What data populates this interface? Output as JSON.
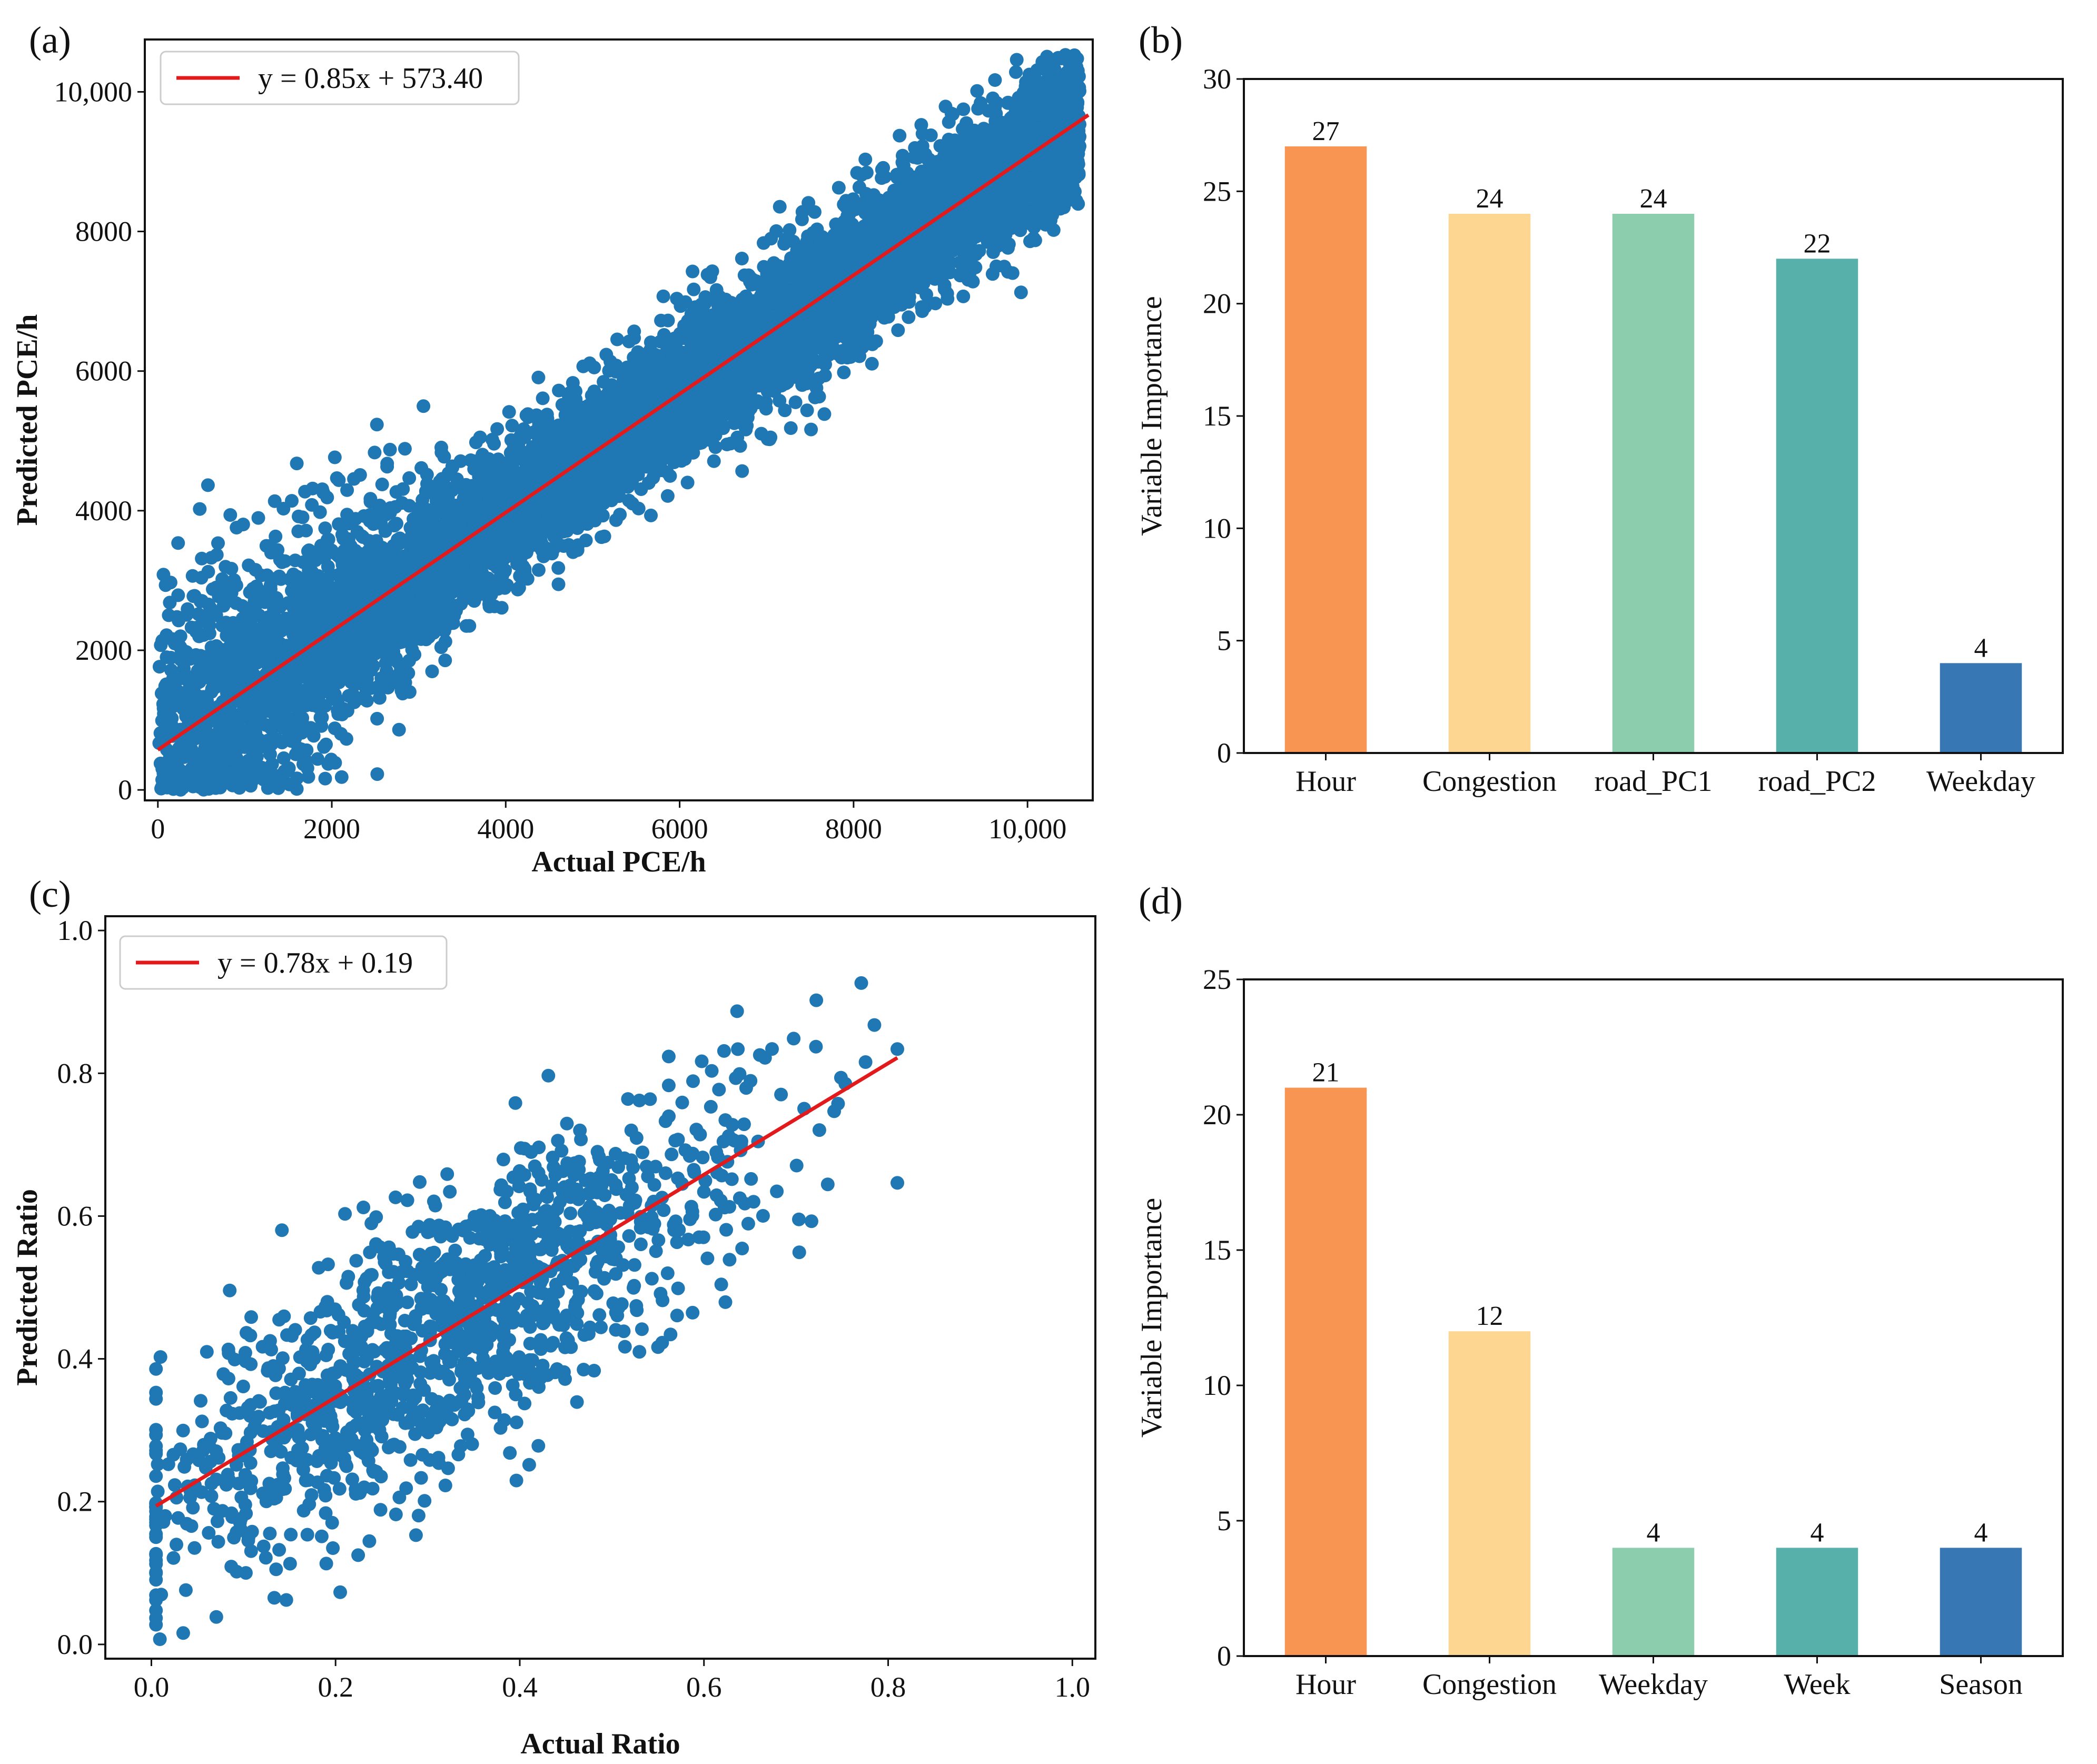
{
  "chart_data": [
    {
      "id": "a",
      "panel_label": "(a)",
      "type": "scatter",
      "title": "",
      "xlabel": "Actual PCE/h",
      "ylabel": "Predicted PCE/h",
      "xlim": [
        -150,
        10750
      ],
      "ylim": [
        -150,
        10750
      ],
      "xticks": [
        0,
        2000,
        4000,
        6000,
        8000,
        10000
      ],
      "xtick_labels": [
        "0",
        "2000",
        "4000",
        "6000",
        "8000",
        "10,000"
      ],
      "yticks": [
        0,
        2000,
        4000,
        6000,
        8000,
        10000
      ],
      "ytick_labels": [
        "0",
        "2000",
        "4000",
        "6000",
        "8000",
        "10,000"
      ],
      "point_color": "#1f77b4",
      "approx_point_count": 30000,
      "regression": {
        "slope": 0.85,
        "intercept": 573.4,
        "x_range": [
          0,
          10700
        ],
        "color": "#e31a1c"
      },
      "legend": {
        "label": "y = 0.85x + 573.40",
        "position": "top-left"
      }
    },
    {
      "id": "b",
      "panel_label": "(b)",
      "type": "bar",
      "title": "",
      "xlabel": "",
      "ylabel": "Variable Importance",
      "categories": [
        "Hour",
        "Congestion",
        "road_PC1",
        "road_PC2",
        "Weekday"
      ],
      "values": [
        27,
        24,
        24,
        22,
        4
      ],
      "value_labels": [
        "27",
        "24",
        "24",
        "22",
        "4"
      ],
      "colors": [
        "#f99553",
        "#fdd792",
        "#8ccdae",
        "#57b0a9",
        "#3778b4"
      ],
      "ylim": [
        0,
        30
      ],
      "yticks": [
        0,
        5,
        10,
        15,
        20,
        25,
        30
      ],
      "ytick_labels": [
        "0",
        "5",
        "10",
        "15",
        "20",
        "25",
        "30"
      ]
    },
    {
      "id": "c",
      "panel_label": "(c)",
      "type": "scatter",
      "title": "",
      "xlabel": "Actual Ratio",
      "ylabel": "Predicted Ratio",
      "xlim": [
        -0.05,
        1.025
      ],
      "ylim": [
        -0.02,
        1.02
      ],
      "xticks": [
        0.0,
        0.2,
        0.4,
        0.6,
        0.8,
        1.0
      ],
      "xtick_labels": [
        "0.0",
        "0.2",
        "0.4",
        "0.6",
        "0.8",
        "1.0"
      ],
      "yticks": [
        0.0,
        0.2,
        0.4,
        0.6,
        0.8,
        1.0
      ],
      "ytick_labels": [
        "0.0",
        "0.2",
        "0.4",
        "0.6",
        "0.8",
        "1.0"
      ],
      "point_color": "#1f77b4",
      "approx_point_count": 1300,
      "regression": {
        "slope": 0.78,
        "intercept": 0.19,
        "x_range": [
          0.005,
          0.81
        ],
        "color": "#e31a1c"
      },
      "legend": {
        "label": "y = 0.78x + 0.19",
        "position": "top-left"
      }
    },
    {
      "id": "d",
      "panel_label": "(d)",
      "type": "bar",
      "title": "",
      "xlabel": "",
      "ylabel": "Variable Importance",
      "categories": [
        "Hour",
        "Congestion",
        "Weekday",
        "Week",
        "Season"
      ],
      "values": [
        21,
        12,
        4,
        4,
        4
      ],
      "value_labels": [
        "21",
        "12",
        "4",
        "4",
        "4"
      ],
      "colors": [
        "#f99553",
        "#fdd792",
        "#8ccdae",
        "#57b0a9",
        "#3778b4"
      ],
      "ylim": [
        0,
        25
      ],
      "yticks": [
        0,
        5,
        10,
        15,
        20,
        25
      ],
      "ytick_labels": [
        "0",
        "5",
        "10",
        "15",
        "20",
        "25"
      ]
    }
  ]
}
